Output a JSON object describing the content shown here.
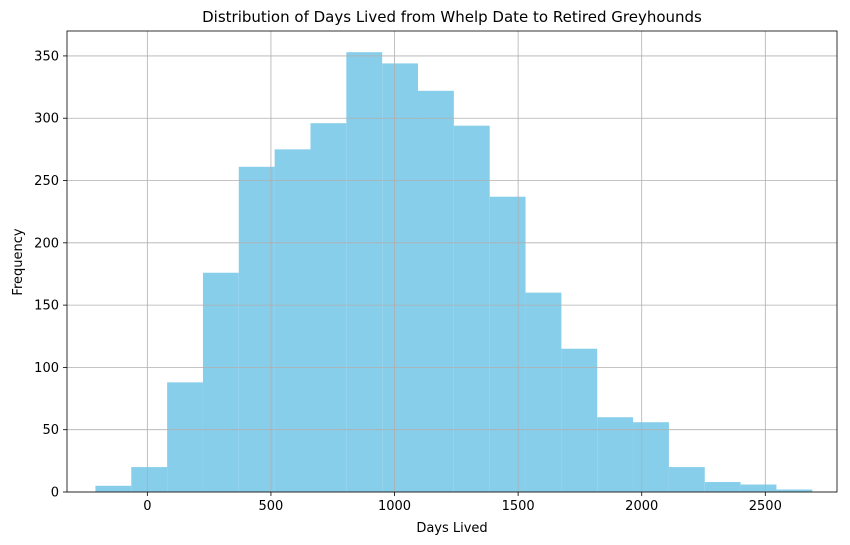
{
  "chart_data": {
    "type": "bar",
    "title": "Distribution of Days Lived from Whelp Date to Retired Greyhounds",
    "xlabel": "Days Lived",
    "ylabel": "Frequency",
    "xlim": [
      -325,
      2790
    ],
    "ylim": [
      0,
      370
    ],
    "xticks": [
      0,
      500,
      1000,
      1500,
      2000,
      2500
    ],
    "yticks": [
      0,
      50,
      100,
      150,
      200,
      250,
      300,
      350
    ],
    "grid": true,
    "bar_color": "#87CEEB",
    "bins": [
      {
        "x0": -210,
        "x1": -65,
        "count": 5
      },
      {
        "x0": -65,
        "x1": 80,
        "count": 20
      },
      {
        "x0": 80,
        "x1": 225,
        "count": 88
      },
      {
        "x0": 225,
        "x1": 370,
        "count": 176
      },
      {
        "x0": 370,
        "x1": 515,
        "count": 261
      },
      {
        "x0": 515,
        "x1": 660,
        "count": 275
      },
      {
        "x0": 660,
        "x1": 805,
        "count": 296
      },
      {
        "x0": 805,
        "x1": 950,
        "count": 353
      },
      {
        "x0": 950,
        "x1": 1095,
        "count": 344
      },
      {
        "x0": 1095,
        "x1": 1240,
        "count": 322
      },
      {
        "x0": 1240,
        "x1": 1385,
        "count": 294
      },
      {
        "x0": 1385,
        "x1": 1530,
        "count": 237
      },
      {
        "x0": 1530,
        "x1": 1675,
        "count": 160
      },
      {
        "x0": 1675,
        "x1": 1820,
        "count": 115
      },
      {
        "x0": 1820,
        "x1": 1965,
        "count": 60
      },
      {
        "x0": 1965,
        "x1": 2110,
        "count": 56
      },
      {
        "x0": 2110,
        "x1": 2255,
        "count": 20
      },
      {
        "x0": 2255,
        "x1": 2400,
        "count": 8
      },
      {
        "x0": 2400,
        "x1": 2545,
        "count": 6
      },
      {
        "x0": 2545,
        "x1": 2690,
        "count": 2
      }
    ]
  }
}
